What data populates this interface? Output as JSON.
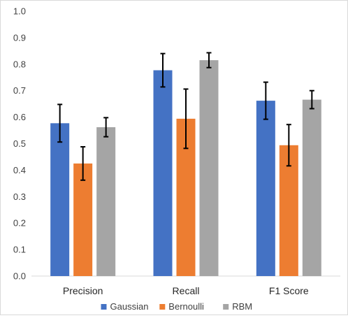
{
  "chart_data": {
    "type": "bar",
    "categories": [
      "Precision",
      "Recall",
      "F1 Score"
    ],
    "series": [
      {
        "name": "Gaussian",
        "color": "#4472c4",
        "values": [
          0.577,
          0.777,
          0.662
        ],
        "error": [
          0.071,
          0.063,
          0.07
        ]
      },
      {
        "name": "Bernoulli",
        "color": "#ed7d31",
        "values": [
          0.425,
          0.594,
          0.494
        ],
        "error": [
          0.063,
          0.112,
          0.078
        ]
      },
      {
        "name": "RBM",
        "color": "#a5a5a5",
        "values": [
          0.562,
          0.815,
          0.666
        ],
        "error": [
          0.036,
          0.028,
          0.034
        ]
      }
    ],
    "ylim": [
      0,
      1.0
    ],
    "yticks": [
      "0.0",
      "0.1",
      "0.2",
      "0.3",
      "0.4",
      "0.5",
      "0.6",
      "0.7",
      "0.8",
      "0.9",
      "1.0"
    ],
    "title": "",
    "xlabel": "",
    "ylabel": "",
    "grid": false,
    "legend_position": "bottom"
  }
}
